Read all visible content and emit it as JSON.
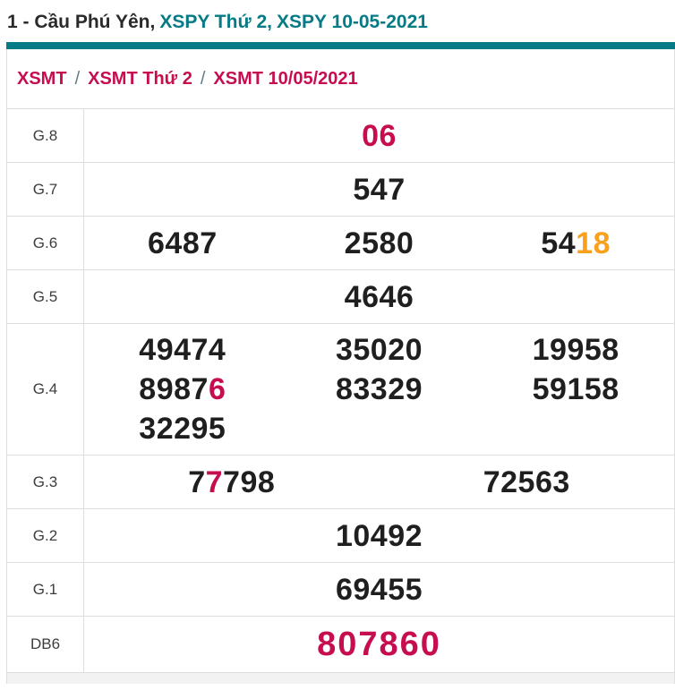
{
  "colors": {
    "accent": "#c60d4f",
    "orange": "#f9a11d",
    "teal": "#077b85",
    "digit": "#1f1f1f"
  },
  "header": {
    "prefix": "1 - Cầu Phú Yên,",
    "link_day": "XSPY Thứ 2,",
    "link_date": "XSPY 10-05-2021"
  },
  "breadcrumb": {
    "separator": "/",
    "items": [
      "XSMT",
      "XSMT Thứ 2",
      "XSMT 10/05/2021"
    ]
  },
  "table": {
    "rows": [
      {
        "label": "G.8",
        "cols": 1,
        "values": [
          [
            {
              "t": "06",
              "c": "accent"
            }
          ]
        ]
      },
      {
        "label": "G.7",
        "cols": 1,
        "values": [
          [
            {
              "t": "547"
            }
          ]
        ]
      },
      {
        "label": "G.6",
        "cols": 3,
        "values": [
          [
            {
              "t": "6487"
            }
          ],
          [
            {
              "t": "2580"
            }
          ],
          [
            {
              "t": "54"
            },
            {
              "t": "18",
              "c": "orange"
            }
          ]
        ]
      },
      {
        "label": "G.5",
        "cols": 1,
        "values": [
          [
            {
              "t": "4646"
            }
          ]
        ]
      },
      {
        "label": "G.4",
        "cols": 3,
        "values": [
          [
            {
              "t": "49474"
            }
          ],
          [
            {
              "t": "35020"
            }
          ],
          [
            {
              "t": "19958"
            }
          ],
          [
            {
              "t": "8987"
            },
            {
              "t": "6",
              "c": "accent"
            }
          ],
          [
            {
              "t": "83329"
            }
          ],
          [
            {
              "t": "59158"
            }
          ],
          [
            {
              "t": "32295"
            }
          ]
        ]
      },
      {
        "label": "G.3",
        "cols": 2,
        "values": [
          [
            {
              "t": "7"
            },
            {
              "t": "7",
              "c": "accent"
            },
            {
              "t": "798"
            }
          ],
          [
            {
              "t": "72563"
            }
          ]
        ]
      },
      {
        "label": "G.2",
        "cols": 1,
        "values": [
          [
            {
              "t": "10492"
            }
          ]
        ]
      },
      {
        "label": "G.1",
        "cols": 1,
        "values": [
          [
            {
              "t": "69455"
            }
          ]
        ]
      },
      {
        "label": "DB6",
        "cols": 1,
        "big": true,
        "values": [
          [
            {
              "t": "807860",
              "c": "accent"
            }
          ]
        ]
      }
    ]
  }
}
